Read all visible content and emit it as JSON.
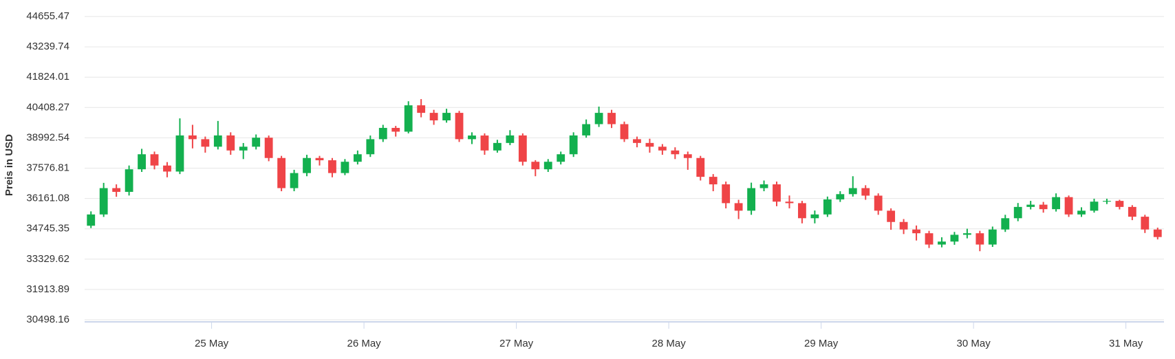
{
  "chart_data": {
    "type": "candlestick",
    "y_label": "Preis in USD",
    "categories": [
      null,
      null,
      null,
      null,
      null,
      null,
      null,
      null,
      null,
      null,
      "25 May",
      null,
      null,
      null,
      null,
      null,
      null,
      null,
      null,
      null,
      null,
      null,
      "26 May",
      null,
      null,
      null,
      null,
      null,
      null,
      null,
      null,
      null,
      null,
      null,
      "27 May",
      null,
      null,
      null,
      null,
      null,
      null,
      null,
      null,
      null,
      null,
      null,
      "28 May",
      null,
      null,
      null,
      null,
      null,
      null,
      null,
      null,
      null,
      null,
      null,
      "29 May",
      null,
      null,
      null,
      null,
      null,
      null,
      null,
      null,
      null,
      null,
      null,
      "30 May",
      null,
      null,
      null,
      null,
      null,
      null,
      null,
      null,
      null,
      null,
      null,
      "31 May",
      null,
      null
    ],
    "open": [
      34889,
      35416,
      36645,
      36470,
      37524,
      38226,
      37699,
      37418,
      39104,
      38929,
      38578,
      39104,
      38402,
      38578,
      38999,
      38051,
      36645,
      37348,
      38051,
      37945,
      37348,
      37875,
      38226,
      38929,
      39456,
      39280,
      40510,
      40158,
      39807,
      40158,
      38929,
      39100,
      38402,
      38753,
      39104,
      37875,
      37524,
      37875,
      38226,
      39104,
      39631,
      40158,
      39631,
      38929,
      38753,
      38578,
      38402,
      38226,
      38051,
      37172,
      36821,
      35943,
      35591,
      36645,
      36821,
      36013,
      35943,
      35240,
      35416,
      36118,
      36364,
      36645,
      36294,
      35591,
      35065,
      34713,
      34538,
      34011,
      34150,
      34467,
      34538,
      34011,
      34713,
      35240,
      35767,
      35872,
      35662,
      36224,
      35416,
      35591,
      36013,
      36048,
      35767,
      35310,
      34713
    ],
    "high": [
      35560,
      36890,
      36820,
      37700,
      38480,
      38350,
      37860,
      39900,
      39600,
      39050,
      39780,
      39250,
      38750,
      39150,
      39100,
      38150,
      37500,
      38200,
      38150,
      38050,
      38000,
      38400,
      39100,
      39600,
      39550,
      40700,
      40800,
      40300,
      40350,
      40250,
      39250,
      39200,
      38900,
      39350,
      39200,
      37950,
      38000,
      38350,
      39250,
      39850,
      40450,
      40300,
      39750,
      39050,
      38950,
      38700,
      38550,
      38350,
      38150,
      37300,
      36950,
      36100,
      36900,
      37000,
      36950,
      36300,
      36050,
      35600,
      36250,
      36500,
      37200,
      36780,
      36400,
      35700,
      35200,
      34900,
      34650,
      34350,
      34600,
      34750,
      34650,
      34850,
      35400,
      35950,
      36050,
      36000,
      36400,
      36300,
      35750,
      36150,
      36150,
      36100,
      35850,
      35400,
      34800
    ],
    "low": [
      34780,
      35300,
      36240,
      36300,
      37400,
      37520,
      37150,
      37300,
      38500,
      38300,
      38450,
      38200,
      38000,
      38450,
      37900,
      36500,
      36500,
      37200,
      37700,
      37150,
      37250,
      37750,
      38100,
      38800,
      39050,
      39200,
      39950,
      39600,
      39700,
      38800,
      38700,
      38200,
      38300,
      38650,
      37700,
      37200,
      37400,
      37750,
      38100,
      39000,
      39500,
      39450,
      38800,
      38550,
      38300,
      38200,
      38000,
      37500,
      37000,
      36500,
      35700,
      35200,
      35400,
      36500,
      35800,
      35700,
      35000,
      35000,
      35300,
      36000,
      36250,
      36100,
      35400,
      34700,
      34500,
      34200,
      33850,
      33880,
      34000,
      34300,
      33700,
      33900,
      34600,
      35100,
      35650,
      35500,
      35550,
      35300,
      35300,
      35500,
      35900,
      35650,
      35150,
      34550,
      34250
    ],
    "close": [
      35416,
      36645,
      36470,
      37524,
      38226,
      37699,
      37418,
      39104,
      38929,
      38578,
      39104,
      38402,
      38578,
      38999,
      38051,
      36645,
      37348,
      38051,
      37945,
      37348,
      37875,
      38226,
      38929,
      39456,
      39280,
      40510,
      40158,
      39807,
      40158,
      38929,
      39100,
      38402,
      38753,
      39104,
      37875,
      37524,
      37875,
      38226,
      39104,
      39631,
      40158,
      39631,
      38929,
      38753,
      38578,
      38402,
      38226,
      38051,
      37172,
      36821,
      35943,
      35591,
      36645,
      36821,
      36013,
      35943,
      35240,
      35416,
      36118,
      36364,
      36645,
      36294,
      35591,
      35065,
      34713,
      34538,
      34011,
      34150,
      34467,
      34538,
      34011,
      34713,
      35240,
      35767,
      35872,
      35662,
      36224,
      35416,
      35591,
      36013,
      36048,
      35767,
      35310,
      34713,
      34362
    ],
    "up_color": "#13b04f",
    "down_color": "#ef4447",
    "ylim": [
      30498.16,
      44655.47
    ],
    "yticks": [
      30498.16,
      31913.89,
      33329.62,
      34745.35,
      36161.08,
      37576.81,
      38992.54,
      40408.27,
      41824.01,
      43239.74,
      44655.47
    ],
    "grid": true
  }
}
